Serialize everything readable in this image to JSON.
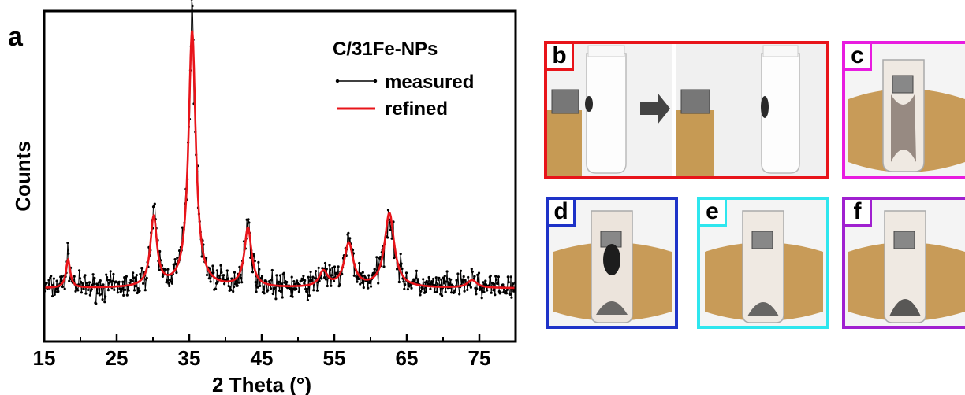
{
  "chart_data": {
    "type": "line",
    "panel_label": "a",
    "legend_title": "C/31Fe-NPs",
    "xlabel": "2 Theta (°)",
    "ylabel": "Counts",
    "xlim": [
      15,
      80
    ],
    "x_ticks": [
      15,
      25,
      35,
      45,
      55,
      65,
      75
    ],
    "y_ticks_shown": false,
    "grid": false,
    "legend_position": "top-right",
    "series": [
      {
        "name": "measured",
        "style": "black line with dot markers",
        "color": "#000000",
        "baseline": 0.06,
        "noise_amplitude": 0.035
      },
      {
        "name": "refined",
        "style": "solid line",
        "color": "#e8141a",
        "baseline": 0.06,
        "peaks": [
          {
            "x": 18.3,
            "height": 0.11,
            "width": 0.35
          },
          {
            "x": 30.1,
            "height": 0.27,
            "width": 0.55
          },
          {
            "x": 35.4,
            "height": 1.0,
            "width": 0.6
          },
          {
            "x": 43.1,
            "height": 0.23,
            "width": 0.6
          },
          {
            "x": 53.5,
            "height": 0.06,
            "width": 0.7
          },
          {
            "x": 57.0,
            "height": 0.17,
            "width": 0.75
          },
          {
            "x": 62.6,
            "height": 0.29,
            "width": 0.8
          },
          {
            "x": 74.0,
            "height": 0.03,
            "width": 0.8
          }
        ]
      }
    ]
  },
  "photos": {
    "panels": [
      {
        "id": "b",
        "label": "b",
        "border_color": "#e8141a"
      },
      {
        "id": "c",
        "label": "c",
        "border_color": "#e81ce0"
      },
      {
        "id": "d",
        "label": "d",
        "border_color": "#1e33c8"
      },
      {
        "id": "e",
        "label": "e",
        "border_color": "#2ee6ee"
      },
      {
        "id": "f",
        "label": "f",
        "border_color": "#a020d0"
      }
    ]
  }
}
